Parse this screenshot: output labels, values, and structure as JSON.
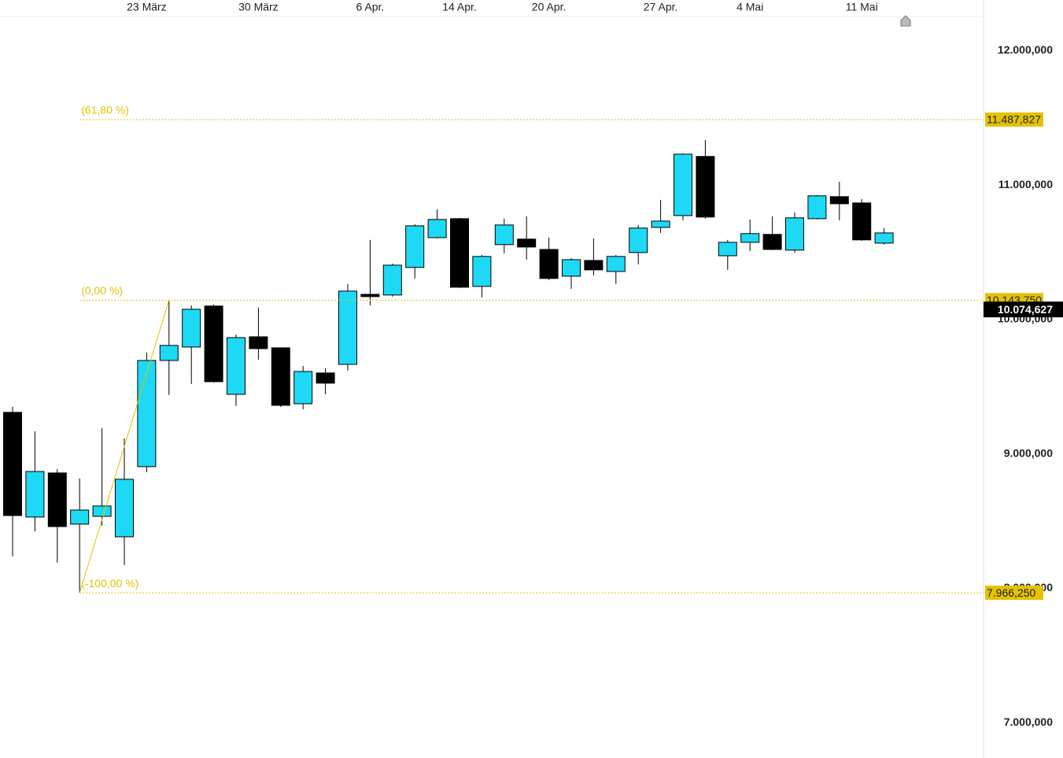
{
  "chart_data": {
    "type": "candlestick",
    "categories": [
      null,
      null,
      null,
      null,
      null,
      null,
      "23 März",
      null,
      null,
      null,
      null,
      "30 März",
      null,
      null,
      null,
      null,
      "6 Apr.",
      null,
      null,
      null,
      "14 Apr.",
      null,
      null,
      null,
      "20 Apr.",
      null,
      null,
      null,
      null,
      "27 Apr.",
      null,
      null,
      null,
      "4 Mai",
      null,
      null,
      null,
      null,
      "11 Mai",
      null
    ],
    "open": [
      9309000,
      8530000,
      8858000,
      8477000,
      8535000,
      8383000,
      8905000,
      9695000,
      9795000,
      10100000,
      9443000,
      9871000,
      9789000,
      9373000,
      9602000,
      9666000,
      10187000,
      10182000,
      10387000,
      10609000,
      10750000,
      10246000,
      10557000,
      10598000,
      10521000,
      10322000,
      10439000,
      10357000,
      10498000,
      10685000,
      10773000,
      11213000,
      10474000,
      10574000,
      10633000,
      10516000,
      10750000,
      10914000,
      10867000,
      10568000
    ],
    "high": [
      9350000,
      9168000,
      8887000,
      8817000,
      9192000,
      9115000,
      9754000,
      10143750,
      10105000,
      10111000,
      9889000,
      10088000,
      9792000,
      9654000,
      9637000,
      10264000,
      10592000,
      10416000,
      10709000,
      10820000,
      10756000,
      10480000,
      10750000,
      10767000,
      10609000,
      10457000,
      10603000,
      10480000,
      10703000,
      10890000,
      11236000,
      11336000,
      10592000,
      10744000,
      10767000,
      10797000,
      10926000,
      11025000,
      10896000,
      10680000
    ],
    "low": [
      8237000,
      8424000,
      8190000,
      7966250,
      8465000,
      8172000,
      8864000,
      9438000,
      9520000,
      9531000,
      9356000,
      9701000,
      9350000,
      9332000,
      9443000,
      9619000,
      10105000,
      10170000,
      10305000,
      10603000,
      10234000,
      10164000,
      10492000,
      10445000,
      10293000,
      10228000,
      10328000,
      10264000,
      10410000,
      10644000,
      10738000,
      10750000,
      10369000,
      10510000,
      10516000,
      10498000,
      10744000,
      10738000,
      10586000,
      10557000
    ],
    "close": [
      8541000,
      8869000,
      8459000,
      8582000,
      8612000,
      8811000,
      9695000,
      9807000,
      10076000,
      9537000,
      9865000,
      9783000,
      9361000,
      9613000,
      9526000,
      10211000,
      10170000,
      10404000,
      10697000,
      10744000,
      10240000,
      10469000,
      10703000,
      10539000,
      10305000,
      10445000,
      10369000,
      10469000,
      10680000,
      10732000,
      11230000,
      10762000,
      10574000,
      10639000,
      10521000,
      10756000,
      10920000,
      10861000,
      10592000,
      10644000
    ],
    "up_color": "#1ed9f5",
    "down_color": "#000000",
    "ylim": [
      6737000,
      12260000
    ],
    "yticks": [
      {
        "value": 7000000,
        "label": "7.000,000"
      },
      {
        "value": 8000000,
        "label": "8.000,000"
      },
      {
        "value": 9000000,
        "label": "9.000,000"
      },
      {
        "value": 10000000,
        "label": "10.000,000"
      },
      {
        "value": 11000000,
        "label": "11.000,000"
      },
      {
        "value": 12000000,
        "label": "12.000,000"
      }
    ],
    "levels": [
      {
        "name": "(61,80 %)",
        "value": 11487827,
        "value_label": "11.487,827"
      },
      {
        "name": "(0,00 %)",
        "value": 10143750,
        "value_label": "10.143,750"
      },
      {
        "name": "(-100,00 %)",
        "value": 7966250,
        "value_label": "7.966,250"
      }
    ],
    "level_color": "#e3c200",
    "last": {
      "value": 10074627,
      "label": "10.074,627"
    }
  }
}
